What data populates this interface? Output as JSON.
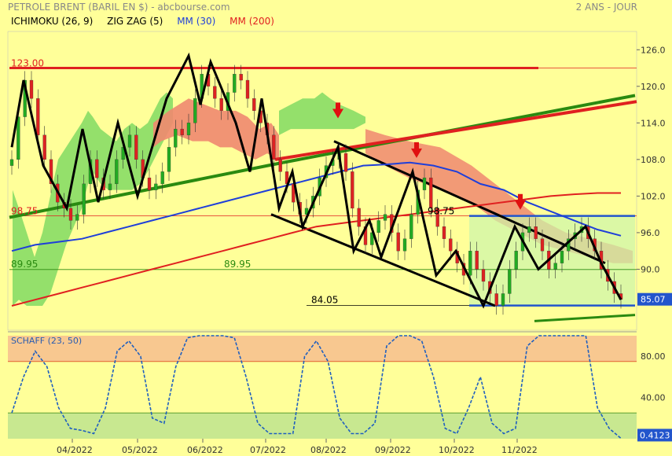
{
  "header": {
    "title": "PETROLE BRENT (BARIL EN $) - abcbourse.com",
    "period": "2 ANS - JOUR"
  },
  "legend": [
    {
      "label": "ICHIMOKU (26, 9)",
      "color": "#000000"
    },
    {
      "label": "ZIG ZAG (5)",
      "color": "#000000"
    },
    {
      "label": "MM (30)",
      "color": "#1f3fd9"
    },
    {
      "label": "MM (200)",
      "color": "#e02020"
    }
  ],
  "colors": {
    "background": "#ffff99",
    "cloud_bull": "#88dd66",
    "cloud_bear": "#f08870",
    "ma30": "#1f3fd9",
    "ma200": "#e02020",
    "zigzag": "#000000",
    "trend_green": "#2a8a10",
    "trend_red": "#e02020",
    "price_box": "#2255cc",
    "candle_up": "#22aa22",
    "candle_down": "#dd2222",
    "osc_line": "#1f5fbf",
    "osc_top_zone": "#f8c890",
    "osc_bottom_zone": "#c8e890"
  },
  "chart_data": {
    "type": "candlestick",
    "title": "PETROLE BRENT (BARIL EN $) - abcbourse.com",
    "x_ticks": [
      "04/2022",
      "05/2022",
      "06/2022",
      "07/2022",
      "08/2022",
      "09/2022",
      "10/2022",
      "11/2022"
    ],
    "y_ticks": [
      90.0,
      96.0,
      102.0,
      108.0,
      114.0,
      120.0,
      126.0
    ],
    "ylim": [
      80,
      129
    ],
    "last_price": 85.07,
    "levels": [
      {
        "label": "123.00",
        "value": 123.0,
        "color": "#e02020"
      },
      {
        "label": "98.75",
        "value": 98.75,
        "color": "#e02020"
      },
      {
        "label": "98.75",
        "value": 98.75,
        "color": "#000000"
      },
      {
        "label": "89.95",
        "value": 89.95,
        "color": "#2a8a10"
      },
      {
        "label": "89.95",
        "value": 89.95,
        "color": "#2a8a10"
      },
      {
        "label": "84.05",
        "value": 84.05,
        "color": "#000000"
      }
    ],
    "close_approx": [
      108,
      115,
      121,
      118,
      112,
      108,
      104,
      101,
      100,
      98,
      99,
      104,
      108,
      105,
      103,
      104,
      108,
      110,
      112,
      108,
      105,
      103,
      104,
      106,
      110,
      113,
      112,
      114,
      118,
      122,
      120,
      118,
      116,
      119,
      122,
      121,
      118,
      116,
      114,
      112,
      108,
      106,
      104,
      101,
      99,
      100,
      102,
      105,
      107,
      108,
      109,
      106,
      100,
      97,
      94,
      96,
      98,
      99,
      96,
      93,
      95,
      99,
      103,
      105,
      100,
      97,
      95,
      93,
      91,
      89,
      93,
      90,
      88,
      86,
      84.05,
      86,
      90,
      93,
      96,
      97,
      95,
      93,
      90,
      91,
      93,
      95,
      96,
      97,
      95,
      93,
      90,
      88,
      86,
      85.07
    ],
    "indicators": {
      "ma30_approx": [
        93,
        94,
        94.5,
        95,
        96,
        97,
        98,
        99,
        100,
        101,
        102,
        103,
        104,
        105,
        106,
        107,
        107.2,
        107.5,
        107,
        106,
        104,
        103,
        101,
        99.5,
        98,
        96.5,
        95.5
      ],
      "ma200_approx": [
        84,
        85,
        86,
        87,
        88,
        89,
        90,
        91,
        92,
        93,
        94,
        95,
        96,
        97,
        97.5,
        98,
        98.5,
        99,
        99.5,
        100,
        100.5,
        101,
        101.5,
        102,
        102.3,
        102.5,
        102.5
      ]
    },
    "oscillator": {
      "name": "SCHAFF (23, 50)",
      "y_ticks": [
        40.0,
        80.0
      ],
      "upper_zone": 75,
      "lower_zone": 25,
      "last_value": 0.4123,
      "values_approx": [
        25,
        60,
        85,
        70,
        30,
        10,
        8,
        5,
        30,
        85,
        95,
        80,
        20,
        15,
        70,
        98,
        100,
        100,
        100,
        98,
        60,
        15,
        5,
        5,
        5,
        80,
        95,
        75,
        20,
        5,
        5,
        15,
        90,
        100,
        100,
        95,
        60,
        10,
        5,
        30,
        60,
        15,
        5,
        10,
        90,
        100,
        100,
        100,
        100,
        100,
        30,
        10,
        0.4123
      ]
    }
  }
}
